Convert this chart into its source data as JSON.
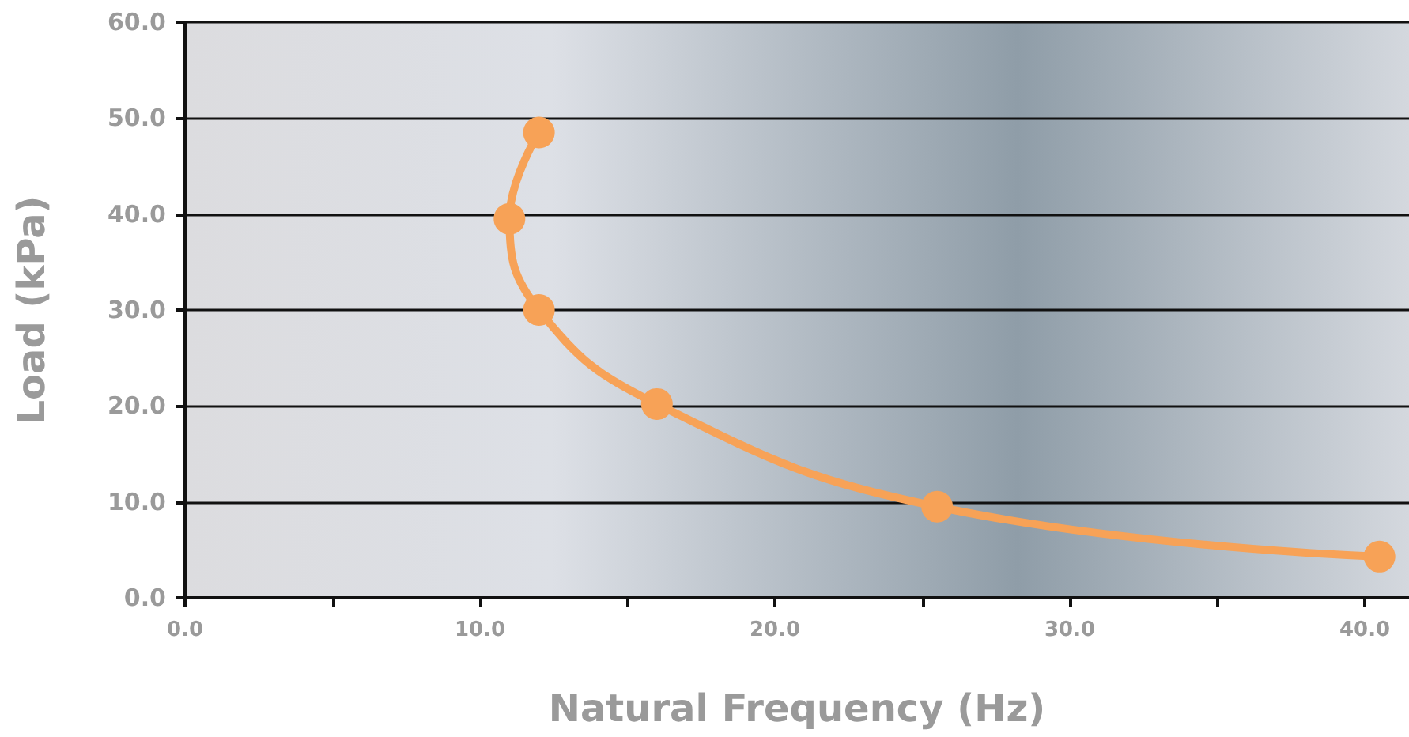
{
  "chart_data": {
    "type": "line",
    "xlabel": "Natural Frequency (Hz)",
    "ylabel": "Load (kPa)",
    "xlim": [
      0,
      41.5
    ],
    "ylim": [
      0,
      60
    ],
    "xticks": [
      {
        "value": 0,
        "label": "0.0"
      },
      {
        "value": 5,
        "label": null
      },
      {
        "value": 10,
        "label": "10.0"
      },
      {
        "value": 15,
        "label": null
      },
      {
        "value": 20,
        "label": "20.0"
      },
      {
        "value": 25,
        "label": null
      },
      {
        "value": 30,
        "label": "30.0"
      },
      {
        "value": 35,
        "label": null
      },
      {
        "value": 40,
        "label": "40.0"
      }
    ],
    "yticks": [
      {
        "value": 0,
        "label": "0.0"
      },
      {
        "value": 10,
        "label": "10.0"
      },
      {
        "value": 20,
        "label": "20.0"
      },
      {
        "value": 30,
        "label": "30.0"
      },
      {
        "value": 40,
        "label": "40.0"
      },
      {
        "value": 50,
        "label": "50.0"
      },
      {
        "value": 60,
        "label": "60.0"
      }
    ],
    "grid": "y",
    "marker": "circle",
    "line_style": "solid",
    "series": [
      {
        "color": "#f7a257",
        "x": [
          12,
          11,
          12,
          16,
          25.5,
          40.5
        ],
        "values": [
          48.5,
          39.5,
          30,
          20.2,
          9.5,
          4.3
        ]
      }
    ]
  }
}
